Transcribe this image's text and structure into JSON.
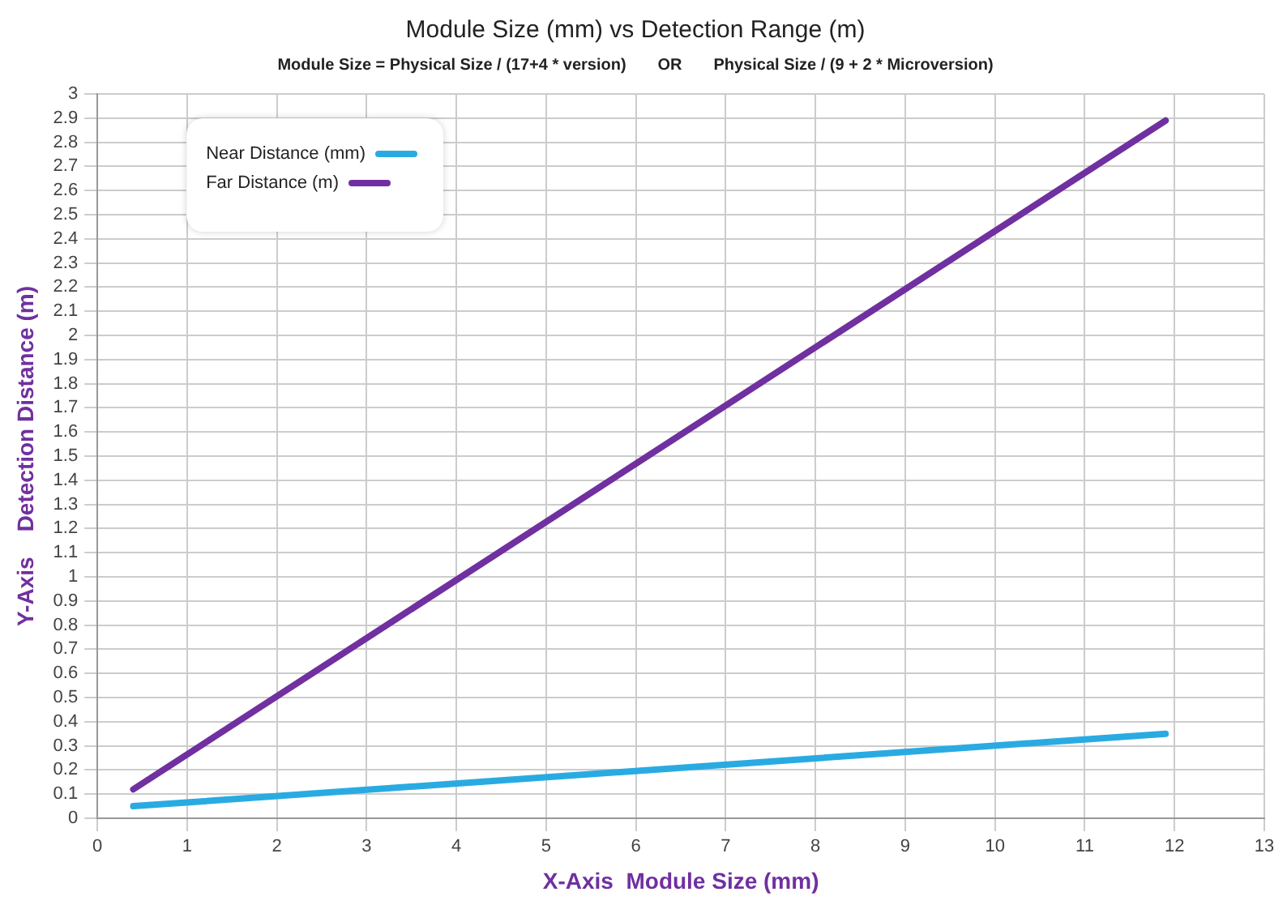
{
  "chart_data": {
    "type": "line",
    "title": "Module Size (mm) vs Detection Range (m)",
    "subtitle": "Module Size = Physical Size / (17+4 * version)       OR       Physical Size / (9 + 2 * Microversion)",
    "xlabel": "X-Axis  Module Size (mm)",
    "ylabel": "Y-Axis    Detection Distance (m)",
    "series": [
      {
        "name": "Near Distance (mm)",
        "color": "#29abe2",
        "values": [
          0.05,
          0.35
        ]
      },
      {
        "name": "Far Distance (m)",
        "color": "#7030a0",
        "values": [
          0.12,
          2.89
        ]
      }
    ],
    "x": [
      0.4,
      11.9
    ],
    "xlim": [
      0,
      13
    ],
    "xticks": [
      0,
      1,
      2,
      3,
      4,
      5,
      6,
      7,
      8,
      9,
      10,
      11,
      12,
      13
    ],
    "ylim": [
      0,
      3
    ],
    "yticks": [
      0,
      0.1,
      0.2,
      0.3,
      0.4,
      0.5,
      0.6,
      0.7,
      0.8,
      0.9,
      1,
      1.1,
      1.2,
      1.3,
      1.4,
      1.5,
      1.6,
      1.7,
      1.8,
      1.9,
      2,
      2.1,
      2.2,
      2.3,
      2.4,
      2.5,
      2.6,
      2.7,
      2.8,
      2.9,
      3
    ],
    "grid": true,
    "legend": "top left",
    "marker": "none",
    "line_style": "solid"
  }
}
